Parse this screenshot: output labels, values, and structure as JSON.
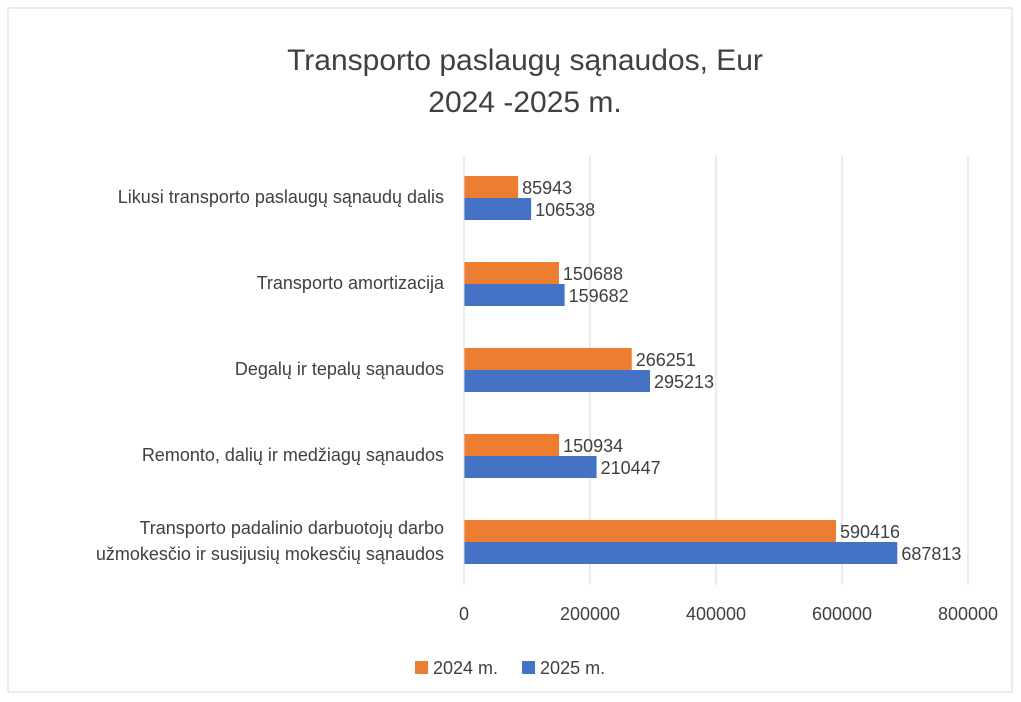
{
  "chart_data": {
    "type": "bar",
    "orientation": "horizontal",
    "title_lines": [
      "Transporto paslaugų sąnaudos, Eur",
      "2024 -2025 m."
    ],
    "categories": [
      "Likusi transporto paslaugų sąnaudų dalis",
      "Transporto amortizacija",
      "Degalų ir tepalų sąnaudos",
      "Remonto, dalių ir medžiagų sąnaudos",
      "Transporto padalinio darbuotojų darbo užmokesčio ir susijusių mokesčių sąnaudos"
    ],
    "series": [
      {
        "name": "2024 m.",
        "color": "#ed7d31",
        "values": [
          85943,
          150688,
          266251,
          150934,
          590416
        ]
      },
      {
        "name": "2025 m.",
        "color": "#4472c4",
        "values": [
          106538,
          159682,
          295213,
          210447,
          687813
        ]
      }
    ],
    "xlim": [
      0,
      800000
    ],
    "xticks": [
      0,
      200000,
      400000,
      600000,
      800000
    ],
    "grid": true,
    "legend": "bottom"
  }
}
